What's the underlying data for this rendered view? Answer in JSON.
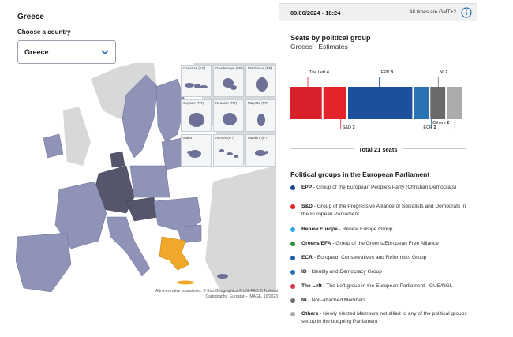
{
  "left": {
    "country_title": "Greece",
    "choose_label": "Choose a country",
    "select": {
      "value": "Greece",
      "icon": "chevron-down-icon"
    },
    "insets": [
      {
        "label": "Canarias (ES)"
      },
      {
        "label": "Guadeloupe (FR)"
      },
      {
        "label": "Martinique (FR)"
      },
      {
        "label": "Guyane (FR)"
      },
      {
        "label": "Réunion (FR)"
      },
      {
        "label": "Mayotte (FR)"
      },
      {
        "label": "Malta"
      },
      {
        "label": "Açores (PT)"
      },
      {
        "label": "Madeira (PT)"
      }
    ],
    "attribution_line1": "Administrative boundaries: © EuroGeographics © UN–FAO © Turkstat",
    "attribution_line2": "Cartography: Eurostat – IMAGE, 10/2023",
    "colors": {
      "highlight": "#f0a82a",
      "member": "#8f93b8",
      "dark": "#55566c",
      "nonmember": "#d6d8da"
    }
  },
  "panel": {
    "timestamp": "09/06/2024 - 18:24",
    "timezone": "All times are GMT+2",
    "info_icon": "info-circle-icon",
    "seats_title": "Seats by political group",
    "seats_subtitle": "Greece - Estimates",
    "total": "Total 21 seats",
    "legend_title": "Political groups in the European Parliament",
    "legend": [
      {
        "abbr": "EPP",
        "text": "Group of the European People's Party (Christian Democrats)",
        "color": "#1d4a8c"
      },
      {
        "abbr": "S&D",
        "text": "Group of the Progressive Alliance of Socialists and Democrats in the European Parliament",
        "color": "#e3252b"
      },
      {
        "abbr": "Renew Europe",
        "text": "Renew Europe Group",
        "color": "#25a8e0"
      },
      {
        "abbr": "Greens/EFA",
        "text": "Group of the Greens/European Free Alliance",
        "color": "#2b8f3a"
      },
      {
        "abbr": "ECR",
        "text": "European Conservatives and Reformists Group",
        "color": "#1c5fa0"
      },
      {
        "abbr": "ID",
        "text": "Identity and Democracy Group",
        "color": "#2d6fae"
      },
      {
        "abbr": "The Left",
        "text": "The Left group in the European Parliament - GUE/NGL",
        "color": "#d9333f"
      },
      {
        "abbr": "NI",
        "text": "Non-attached Members",
        "color": "#6b6b6b"
      },
      {
        "abbr": "Others",
        "text": "Newly elected Members not allied to any of the political groups set up in the outgoing Parliament",
        "color": "#a7a9ac"
      }
    ]
  },
  "chart_data": {
    "type": "bar",
    "title": "Seats by political group",
    "subtitle": "Greece - Estimates",
    "categories": [
      "The Left",
      "S&D",
      "EPP",
      "ECR",
      "NI",
      "Others"
    ],
    "values": [
      4,
      3,
      8,
      2,
      2,
      2
    ],
    "colors": [
      "#d9202a",
      "#e3252b",
      "#1c4f9c",
      "#2a74b5",
      "#6a6a6a",
      "#a9abad"
    ],
    "total": 21,
    "label_positions": [
      "top",
      "bottom",
      "top",
      "bottom",
      "top",
      "bottom"
    ]
  }
}
